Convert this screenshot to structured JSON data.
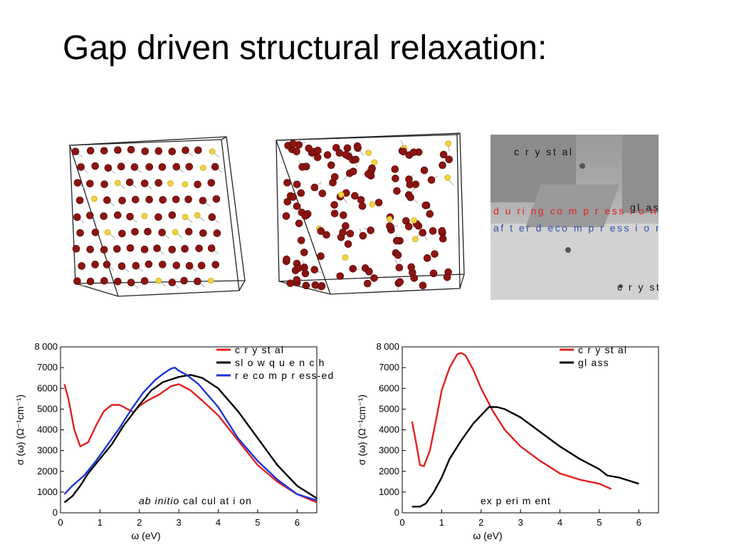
{
  "slide": {
    "title": "Gap driven structural relaxation:"
  },
  "micrograph": {
    "label_crystal_top": "c r y st al",
    "label_glass": "gl as",
    "label_during": "d u ri ng co m p r ess i o n",
    "label_after": "af t er  d eco m p r ess i o n",
    "label_crystal_bottom": "c r y st",
    "colors": {
      "during": "#e02020",
      "after": "#3050b0"
    }
  },
  "chart_data": [
    {
      "type": "line",
      "xlabel": "ω (eV)",
      "ylabel": "σ (ω)  (Ω⁻¹cm⁻¹)",
      "annotation_italic": "ab initio",
      "annotation_rest": " cal cul at i on",
      "xlim": [
        0,
        6.5
      ],
      "ylim": [
        0,
        8000
      ],
      "xticks": [
        "0",
        "1",
        "2",
        "3",
        "4",
        "5",
        "6"
      ],
      "yticks": [
        "0",
        "1000",
        "2000",
        "3000",
        "4000",
        "5000",
        "6000",
        "7000",
        "8 000"
      ],
      "legend_position": "top-right",
      "series": [
        {
          "name": "c r y st al",
          "color": "#e02020",
          "x": [
            0.1,
            0.2,
            0.35,
            0.5,
            0.7,
            0.9,
            1.1,
            1.3,
            1.5,
            1.7,
            1.85,
            2.0,
            2.2,
            2.5,
            2.8,
            3.0,
            3.3,
            3.6,
            4.0,
            4.5,
            5.0,
            5.5,
            6.0,
            6.5
          ],
          "y": [
            6200,
            5500,
            4000,
            3200,
            3400,
            4200,
            4900,
            5200,
            5200,
            5000,
            4850,
            5150,
            5400,
            5700,
            6100,
            6200,
            5900,
            5400,
            4700,
            3500,
            2300,
            1500,
            900,
            500
          ]
        },
        {
          "name": "sl o w q u e n c h",
          "color": "#000000",
          "x": [
            0.1,
            0.3,
            0.5,
            0.7,
            1.0,
            1.3,
            1.6,
            2.0,
            2.3,
            2.6,
            3.0,
            3.3,
            3.6,
            4.0,
            4.5,
            5.0,
            5.5,
            6.0,
            6.5
          ],
          "y": [
            500,
            800,
            1300,
            1900,
            2600,
            3300,
            4200,
            5200,
            5900,
            6300,
            6550,
            6650,
            6500,
            6000,
            4900,
            3600,
            2300,
            1300,
            700
          ]
        },
        {
          "name": "r e co m p r ess-ed",
          "color": "#1c34d6",
          "x": [
            0.1,
            0.3,
            0.6,
            0.9,
            1.2,
            1.5,
            1.8,
            2.1,
            2.4,
            2.6,
            2.8,
            2.9,
            3.0,
            3.2,
            3.5,
            4.0,
            4.5,
            5.0,
            5.5,
            6.0,
            6.5
          ],
          "y": [
            900,
            1300,
            1800,
            2500,
            3300,
            4100,
            5000,
            5800,
            6400,
            6700,
            6950,
            7000,
            6850,
            6650,
            6200,
            5100,
            3600,
            2500,
            1600,
            900,
            600
          ]
        }
      ]
    },
    {
      "type": "line",
      "xlabel": "ω (eV)",
      "ylabel": "σ (ω)  (Ω⁻¹cm⁻¹)",
      "annotation_italic": "",
      "annotation_rest": "ex p eri  m ent",
      "xlim": [
        0,
        6.5
      ],
      "ylim": [
        0,
        8000
      ],
      "xticks": [
        "0",
        "1",
        "2",
        "3",
        "4",
        "5",
        "6"
      ],
      "yticks": [
        "0",
        "1000",
        "2000",
        "3000",
        "4000",
        "5000",
        "6000",
        "7000",
        "8 000"
      ],
      "legend_position": "top-right",
      "series": [
        {
          "name": "c r y st al",
          "color": "#e02020",
          "x": [
            0.25,
            0.35,
            0.45,
            0.55,
            0.7,
            0.85,
            1.0,
            1.2,
            1.4,
            1.5,
            1.6,
            1.8,
            2.0,
            2.3,
            2.6,
            3.0,
            3.5,
            4.0,
            4.5,
            5.0,
            5.3
          ],
          "y": [
            4400,
            3400,
            2300,
            2250,
            3000,
            4400,
            5900,
            7000,
            7650,
            7700,
            7600,
            6900,
            6000,
            4900,
            4000,
            3200,
            2500,
            1900,
            1600,
            1400,
            1150
          ]
        },
        {
          "name": "gl ass",
          "color": "#000000",
          "x": [
            0.25,
            0.45,
            0.6,
            0.8,
            1.0,
            1.2,
            1.5,
            1.8,
            2.0,
            2.2,
            2.4,
            2.6,
            3.0,
            3.5,
            4.0,
            4.5,
            5.0,
            5.2,
            5.5,
            6.0
          ],
          "y": [
            300,
            300,
            450,
            1000,
            1700,
            2600,
            3500,
            4300,
            4700,
            5100,
            5100,
            5000,
            4600,
            3900,
            3200,
            2600,
            2100,
            1800,
            1700,
            1400
          ]
        }
      ]
    }
  ]
}
